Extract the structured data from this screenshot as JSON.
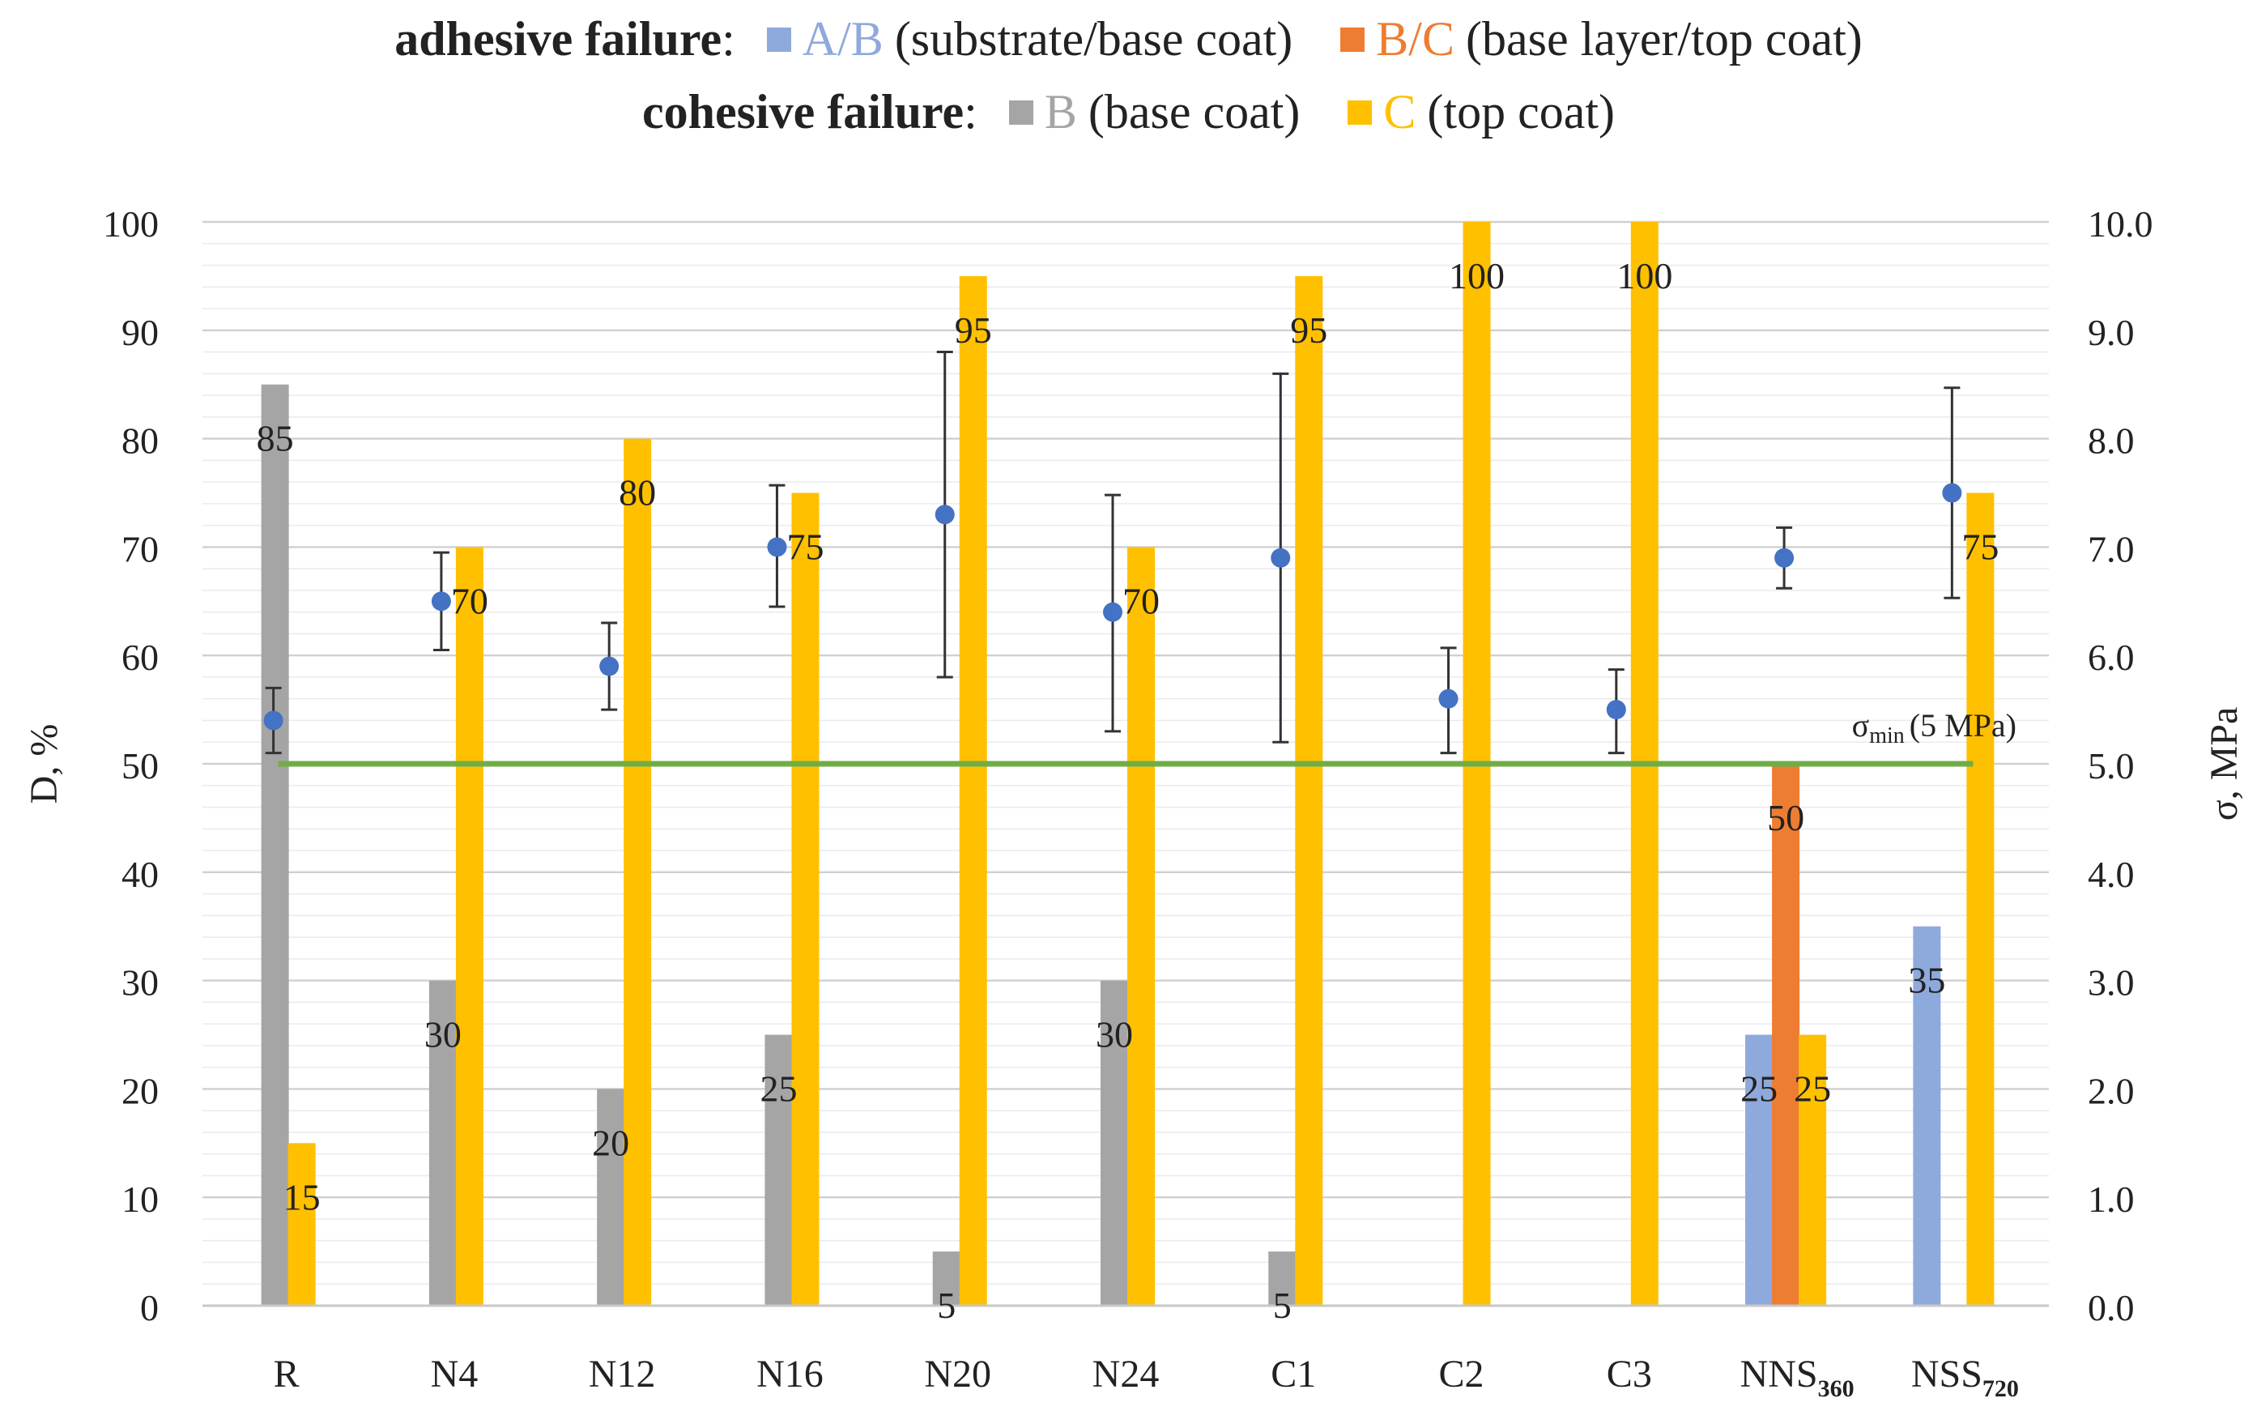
{
  "chart_data": {
    "type": "bar",
    "legend": {
      "adhesive_header": "adhesive failure",
      "cohesive_header": "cohesive failure",
      "colon": ":",
      "items": [
        {
          "code": "A/B",
          "text": "(substrate/base coat)",
          "color": "#8EA9DB"
        },
        {
          "code": "B/C",
          "text": "(base layer/top coat)",
          "color": "#ED7D31"
        },
        {
          "code": "B",
          "text": "(base coat)",
          "color": "#A5A5A5"
        },
        {
          "code": "C",
          "text": "(top coat)",
          "color": "#FFC000"
        }
      ]
    },
    "categories": [
      {
        "label": "R",
        "sub": ""
      },
      {
        "label": "N4",
        "sub": ""
      },
      {
        "label": "N12",
        "sub": ""
      },
      {
        "label": "N16",
        "sub": ""
      },
      {
        "label": "N20",
        "sub": ""
      },
      {
        "label": "N24",
        "sub": ""
      },
      {
        "label": "C1",
        "sub": ""
      },
      {
        "label": "C2",
        "sub": ""
      },
      {
        "label": "C3",
        "sub": ""
      },
      {
        "label": "NNS",
        "sub": "360"
      },
      {
        "label": "NSS",
        "sub": "720"
      }
    ],
    "series": [
      {
        "name": "A/B (substrate/base coat)",
        "color": "#8EA9DB",
        "values": [
          null,
          null,
          null,
          null,
          null,
          null,
          null,
          null,
          null,
          25,
          35
        ],
        "labels": [
          "",
          "",
          "",
          "",
          "",
          "",
          "",
          "",
          "",
          "25",
          "35"
        ]
      },
      {
        "name": "B/C (base layer/top coat)",
        "color": "#ED7D31",
        "values": [
          null,
          null,
          null,
          null,
          null,
          null,
          null,
          null,
          null,
          50,
          null
        ],
        "labels": [
          "",
          "",
          "",
          "",
          "",
          "",
          "",
          "",
          "",
          "50",
          ""
        ]
      },
      {
        "name": "B (base coat)",
        "color": "#A5A5A5",
        "values": [
          85,
          30,
          20,
          25,
          5,
          30,
          5,
          null,
          null,
          null,
          null
        ],
        "labels": [
          "85",
          "30",
          "20",
          "25",
          "5",
          "30",
          "5",
          "",
          "",
          "",
          ""
        ]
      },
      {
        "name": "C (top coat)",
        "color": "#FFC000",
        "values": [
          15,
          70,
          80,
          75,
          95,
          70,
          95,
          100,
          100,
          25,
          75
        ],
        "labels": [
          "15",
          "70",
          "80",
          "75",
          "95",
          "70",
          "95",
          "100",
          "100",
          "25",
          "75"
        ]
      }
    ],
    "stress": {
      "name": "σ, MPa",
      "color": "#4472C4",
      "mean": [
        5.4,
        6.5,
        5.9,
        7.0,
        7.3,
        6.4,
        6.9,
        5.6,
        5.5,
        6.9,
        7.5
      ],
      "err_low": [
        5.1,
        6.05,
        5.5,
        6.45,
        5.8,
        5.3,
        5.2,
        5.1,
        5.1,
        6.62,
        6.53
      ],
      "err_high": [
        5.7,
        6.95,
        6.3,
        7.57,
        8.8,
        7.48,
        8.6,
        6.07,
        5.87,
        7.18,
        8.47
      ]
    },
    "threshold": {
      "value": 5.0,
      "label_main": "σ",
      "label_sub": "min",
      "label_rest": "(5 MPa)",
      "color": "#70AD47"
    },
    "y_left": {
      "label": "D, %",
      "min": 0,
      "max": 100,
      "step": 10,
      "ticks": [
        "0",
        "10",
        "20",
        "30",
        "40",
        "50",
        "60",
        "70",
        "80",
        "90",
        "100"
      ]
    },
    "y_right": {
      "label": "σ, MPa",
      "min": 0,
      "max": 10,
      "step": 1,
      "ticks": [
        "0.0",
        "1.0",
        "2.0",
        "3.0",
        "4.0",
        "5.0",
        "6.0",
        "7.0",
        "8.0",
        "9.0",
        "10.0"
      ]
    },
    "grid": true,
    "legend_position": "top"
  }
}
